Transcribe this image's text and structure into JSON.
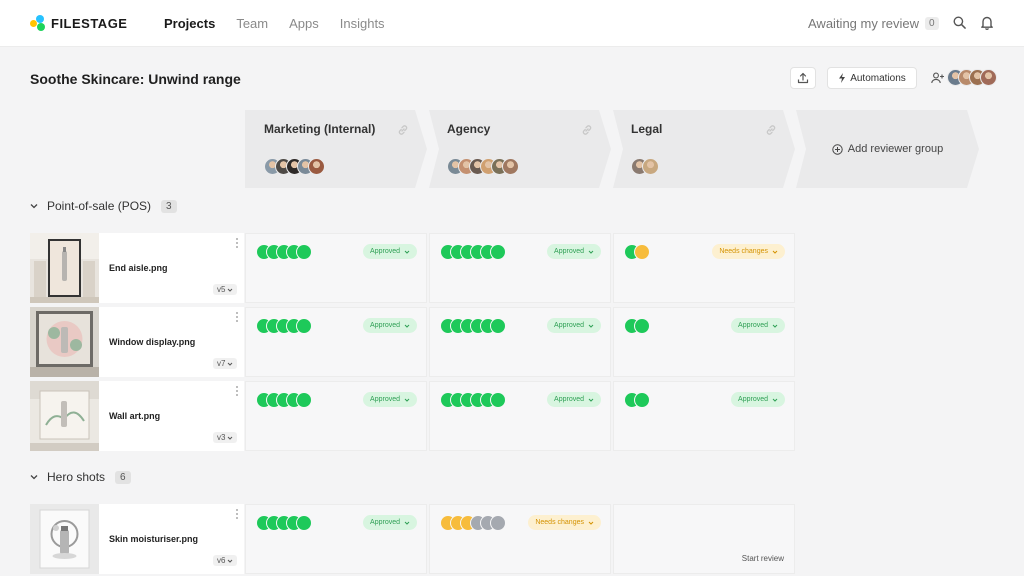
{
  "brand": {
    "name": "FILESTAGE"
  },
  "nav": {
    "items": [
      "Projects",
      "Team",
      "Apps",
      "Insights"
    ],
    "active": 0
  },
  "awaiting": {
    "label": "Awaiting my review",
    "count": "0"
  },
  "project": {
    "title": "Soothe Skincare: Unwind range",
    "automations_label": "Automations"
  },
  "header_avatars": [
    "#6a7b8c",
    "#b88a6a",
    "#9c7050",
    "#a06a58"
  ],
  "groups": [
    {
      "name": "Marketing (Internal)",
      "avatars": [
        "#8a9aa8",
        "#4e4a46",
        "#2e2a28",
        "#7a8a98",
        "#9a5a40"
      ]
    },
    {
      "name": "Agency",
      "avatars": [
        "#7a8a96",
        "#c49070",
        "#6a5a50",
        "#d0a070",
        "#7a7058",
        "#a07860"
      ]
    },
    {
      "name": "Legal",
      "avatars": [
        "#8a7a70",
        "#c8a880"
      ]
    }
  ],
  "add_group_label": "Add reviewer group",
  "colors": {
    "green": "#1ec95a",
    "yellow": "#f7bc3c",
    "grey": "#a5a9b0"
  },
  "sections": [
    {
      "title": "Point-of-sale (POS)",
      "count": "3",
      "files": [
        {
          "name": "End aisle.png",
          "version": "v5",
          "reviews": [
            {
              "dots": [
                "green",
                "green",
                "green",
                "green",
                "green"
              ],
              "status": "Approved",
              "type": "approved"
            },
            {
              "dots": [
                "green",
                "green",
                "green",
                "green",
                "green",
                "green"
              ],
              "status": "Approved",
              "type": "approved"
            },
            {
              "dots": [
                "green",
                "yellow"
              ],
              "status": "Needs changes",
              "type": "changes"
            }
          ]
        },
        {
          "name": "Window display.png",
          "version": "v7",
          "reviews": [
            {
              "dots": [
                "green",
                "green",
                "green",
                "green",
                "green"
              ],
              "status": "Approved",
              "type": "approved"
            },
            {
              "dots": [
                "green",
                "green",
                "green",
                "green",
                "green",
                "green"
              ],
              "status": "Approved",
              "type": "approved"
            },
            {
              "dots": [
                "green",
                "green"
              ],
              "status": "Approved",
              "type": "approved"
            }
          ]
        },
        {
          "name": "Wall art.png",
          "version": "v3",
          "reviews": [
            {
              "dots": [
                "green",
                "green",
                "green",
                "green",
                "green"
              ],
              "status": "Approved",
              "type": "approved"
            },
            {
              "dots": [
                "green",
                "green",
                "green",
                "green",
                "green",
                "green"
              ],
              "status": "Approved",
              "type": "approved"
            },
            {
              "dots": [
                "green",
                "green"
              ],
              "status": "Approved",
              "type": "approved"
            }
          ]
        }
      ]
    },
    {
      "title": "Hero shots",
      "count": "6",
      "files": [
        {
          "name": "Skin moisturiser.png",
          "version": "v6",
          "reviews": [
            {
              "dots": [
                "green",
                "green",
                "green",
                "green",
                "green"
              ],
              "status": "Approved",
              "type": "approved"
            },
            {
              "dots": [
                "yellow",
                "yellow",
                "yellow",
                "grey",
                "grey",
                "grey"
              ],
              "status": "Needs changes",
              "type": "changes"
            },
            {
              "dots": [],
              "status": "",
              "type": "none",
              "action": "Start review"
            }
          ]
        }
      ]
    }
  ]
}
